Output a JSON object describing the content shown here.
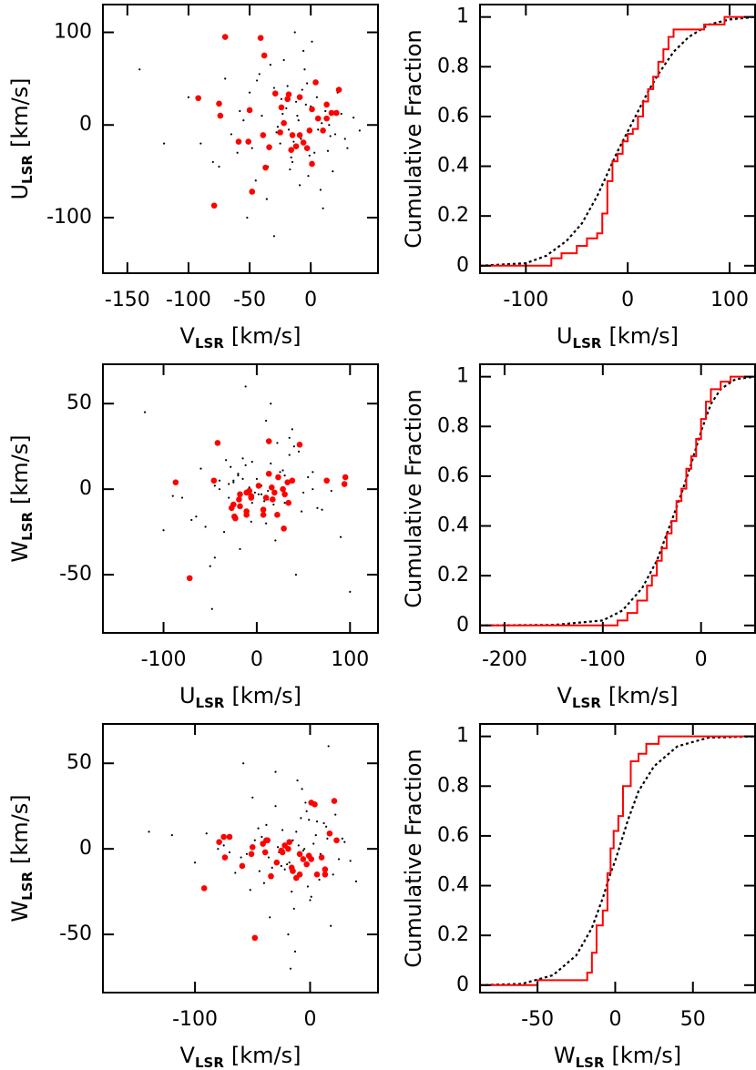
{
  "chart_data": [
    {
      "type": "scatter",
      "x_label": {
        "symbol": "V",
        "subscript": "LSR",
        "unit": "[km/s]"
      },
      "y_label": {
        "symbol": "U",
        "subscript": "LSR",
        "unit": "[km/s]"
      },
      "xlim": [
        -170,
        55
      ],
      "ylim": [
        -160,
        130
      ],
      "xticks": [
        -150,
        -100,
        -50,
        0
      ],
      "yticks": [
        -100,
        0,
        100
      ],
      "series": [
        {
          "color": "#000000",
          "x": [
            -10,
            -25,
            5,
            -40,
            -15,
            12,
            -60,
            -5,
            20,
            -30,
            -18,
            -45,
            0,
            30,
            -70,
            -8,
            -22,
            15,
            -35,
            -12,
            -55,
            8,
            -3,
            -28,
            25,
            -50,
            -16,
            -90,
            -6,
            18,
            -38,
            -20,
            3,
            -65,
            -11,
            10,
            -42,
            -2,
            -24,
            35,
            -80,
            -14,
            6,
            -33,
            -48,
            22,
            -9,
            -27,
            -58,
            1,
            -120,
            -19,
            14,
            -36,
            -4,
            40,
            -75,
            -13,
            -1,
            -44,
            28,
            -100,
            -7,
            -52,
            9,
            -30,
            -17,
            -140,
            -23,
            16
          ],
          "values": [
            5,
            -20,
            30,
            10,
            -40,
            15,
            -30,
            60,
            -10,
            40,
            -5,
            -60,
            20,
            -25,
            50,
            -15,
            70,
            0,
            -45,
            25,
            5,
            -70,
            45,
            -8,
            12,
            35,
            -35,
            -20,
            80,
            -50,
            -12,
            18,
            -30,
            -10,
            10,
            -90,
            55,
            -55,
            28,
            8,
            -40,
            -18,
            -5,
            65,
            -25,
            35,
            -65,
            -2,
            15,
            90,
            -20,
            42,
            -28,
            -80,
            22,
            -6,
            -45,
            100,
            -33,
            48,
            -15,
            30,
            38,
            -100,
            2,
            -120,
            -48,
            60,
            12,
            -12
          ]
        },
        {
          "color": "#ff0000",
          "x": [
            -70,
            -41,
            -38,
            -92,
            -75,
            -74,
            -59,
            -51,
            -50,
            -39,
            -37,
            -48,
            -79,
            -29,
            -19,
            -18,
            -9,
            -15,
            -9,
            -6,
            -12,
            -16,
            -3,
            -25,
            -22,
            1,
            4,
            1,
            6,
            10,
            13,
            17,
            21,
            23,
            13,
            -1,
            -34,
            -24
          ],
          "values": [
            95,
            94,
            75,
            29,
            23,
            10,
            -18,
            -18,
            16,
            -11,
            -46,
            -72,
            -87,
            34,
            28,
            33,
            30,
            -11,
            -11,
            -19,
            -23,
            -27,
            -25,
            -8,
            2,
            -42,
            46,
            17,
            7,
            -6,
            22,
            13,
            13,
            38,
            7,
            -6,
            -24,
            19
          ]
        }
      ]
    },
    {
      "type": "line",
      "x_label": {
        "symbol": "U",
        "subscript": "LSR",
        "unit": "[km/s]"
      },
      "y_label": "Cumulative Fraction",
      "xlim": [
        -145,
        125
      ],
      "ylim": [
        -0.03,
        1.05
      ],
      "xticks": [
        -100,
        0,
        100
      ],
      "yticks": [
        0,
        0.2,
        0.4,
        0.6,
        0.8,
        1
      ],
      "series": [
        {
          "color": "#000000",
          "linestyle": "dotted",
          "x": [
            -145,
            -100,
            -80,
            -60,
            -45,
            -30,
            -20,
            -10,
            0,
            10,
            20,
            30,
            45,
            60,
            80,
            100,
            125
          ],
          "values": [
            0,
            0.01,
            0.04,
            0.1,
            0.17,
            0.28,
            0.37,
            0.46,
            0.54,
            0.62,
            0.7,
            0.77,
            0.86,
            0.92,
            0.97,
            0.99,
            1
          ]
        },
        {
          "color": "#ff0000",
          "linestyle": "solid",
          "step": true,
          "x": [
            -145,
            -75,
            -65,
            -50,
            -40,
            -30,
            -25,
            -20,
            -15,
            -10,
            -5,
            0,
            5,
            10,
            15,
            20,
            25,
            30,
            35,
            40,
            45,
            60,
            75,
            95,
            125
          ],
          "values": [
            0,
            0.03,
            0.05,
            0.08,
            0.11,
            0.13,
            0.21,
            0.34,
            0.42,
            0.45,
            0.5,
            0.53,
            0.55,
            0.6,
            0.66,
            0.71,
            0.76,
            0.82,
            0.87,
            0.92,
            0.95,
            0.95,
            0.97,
            1,
            1
          ]
        }
      ]
    },
    {
      "type": "scatter",
      "x_label": {
        "symbol": "U",
        "subscript": "LSR",
        "unit": "[km/s]"
      },
      "y_label": {
        "symbol": "W",
        "subscript": "LSR",
        "unit": "[km/s]"
      },
      "xlim": [
        -165,
        130
      ],
      "ylim": [
        -84,
        73
      ],
      "xticks": [
        -100,
        0,
        100
      ],
      "yticks": [
        -50,
        0,
        50
      ],
      "series": [
        {
          "color": "#000000",
          "x": [
            5,
            -20,
            30,
            10,
            -40,
            15,
            -30,
            60,
            -10,
            40,
            -5,
            -60,
            20,
            -25,
            50,
            -15,
            70,
            0,
            -45,
            25,
            5,
            -70,
            45,
            -8,
            12,
            35,
            -35,
            -20,
            80,
            -50,
            -12,
            18,
            -30,
            -10,
            10,
            -90,
            55,
            -55,
            28,
            8,
            -40,
            -18,
            -5,
            65,
            -25,
            35,
            -65,
            -2,
            15,
            90,
            -20,
            42,
            -28,
            -80,
            22,
            -6,
            -45,
            100,
            -33,
            48,
            -15,
            30,
            38,
            -100,
            2,
            -120,
            -48,
            60,
            12,
            -12
          ],
          "values": [
            2,
            -10,
            8,
            -20,
            5,
            15,
            -5,
            0,
            -15,
            25,
            -8,
            12,
            -30,
            4,
            -2,
            18,
            -12,
            6,
            -40,
            10,
            -3,
            -18,
            22,
            1,
            -6,
            30,
            -25,
            9,
            -1,
            -45,
            14,
            -9,
            3,
            -14,
            40,
            -4,
            7,
            -22,
            11,
            -7,
            0,
            -35,
            16,
            -11,
            5,
            20,
            -16,
            -2,
            50,
            -28,
            8,
            -50,
            13,
            -5,
            27,
            -19,
            2,
            -60,
            17,
            -13,
            6,
            -8,
            35,
            -24,
            -3,
            45,
            -70,
            10,
            -1,
            60
          ]
        },
        {
          "color": "#ff0000",
          "x": [
            95,
            94,
            75,
            29,
            23,
            10,
            -18,
            -18,
            16,
            -11,
            -46,
            -72,
            -87,
            34,
            28,
            33,
            30,
            -11,
            -11,
            -19,
            -23,
            -27,
            -25,
            -8,
            2,
            -42,
            46,
            17,
            7,
            -6,
            22,
            13,
            13,
            38,
            7,
            -6,
            -24,
            19
          ],
          "values": [
            7,
            3,
            5,
            -23,
            7,
            -5,
            -10,
            -3,
            1,
            -2,
            5,
            -52,
            4,
            -8,
            0,
            4,
            -3,
            -13,
            -15,
            -6,
            -17,
            -11,
            -9,
            -1,
            2,
            27,
            26,
            -6,
            -15,
            -5,
            -15,
            9,
            28,
            5,
            -12,
            -4,
            -16,
            -2
          ]
        }
      ]
    },
    {
      "type": "line",
      "x_label": {
        "symbol": "V",
        "subscript": "LSR",
        "unit": "[km/s]"
      },
      "y_label": "Cumulative Fraction",
      "xlim": [
        -225,
        55
      ],
      "ylim": [
        -0.03,
        1.05
      ],
      "xticks": [
        -200,
        -100,
        0
      ],
      "yticks": [
        0,
        0.2,
        0.4,
        0.6,
        0.8,
        1
      ],
      "series": [
        {
          "color": "#000000",
          "linestyle": "dotted",
          "x": [
            -225,
            -150,
            -100,
            -80,
            -60,
            -45,
            -30,
            -20,
            -10,
            0,
            10,
            20,
            35,
            55
          ],
          "values": [
            0,
            0.002,
            0.02,
            0.06,
            0.15,
            0.26,
            0.42,
            0.53,
            0.65,
            0.78,
            0.89,
            0.95,
            0.99,
            1
          ]
        },
        {
          "color": "#ff0000",
          "linestyle": "solid",
          "step": true,
          "x": [
            -225,
            -85,
            -75,
            -65,
            -55,
            -50,
            -45,
            -40,
            -35,
            -30,
            -25,
            -20,
            -15,
            -10,
            -5,
            0,
            5,
            10,
            20,
            30,
            55
          ],
          "values": [
            0,
            0.02,
            0.05,
            0.1,
            0.16,
            0.2,
            0.26,
            0.31,
            0.37,
            0.42,
            0.5,
            0.55,
            0.63,
            0.68,
            0.75,
            0.83,
            0.9,
            0.95,
            0.98,
            1,
            1
          ]
        }
      ]
    },
    {
      "type": "scatter",
      "x_label": {
        "symbol": "V",
        "subscript": "LSR",
        "unit": "[km/s]"
      },
      "y_label": {
        "symbol": "W",
        "subscript": "LSR",
        "unit": "[km/s]"
      },
      "xlim": [
        -180,
        59
      ],
      "ylim": [
        -84,
        73
      ],
      "xticks": [
        -100,
        0
      ],
      "yticks": [
        -50,
        0,
        50
      ],
      "series": [
        {
          "color": "#000000",
          "x": [
            -10,
            -25,
            5,
            -40,
            -15,
            12,
            -60,
            -5,
            20,
            -30,
            -18,
            -45,
            0,
            30,
            -70,
            -8,
            -22,
            15,
            -35,
            -12,
            -55,
            8,
            -3,
            -28,
            25,
            -50,
            -16,
            -90,
            -6,
            18,
            -38,
            -20,
            3,
            -65,
            -11,
            10,
            -42,
            -2,
            -24,
            35,
            -80,
            -14,
            6,
            -33,
            -48,
            22,
            -9,
            -27,
            -58,
            1,
            -120,
            -19,
            14,
            -36,
            -4,
            40,
            -75,
            -13,
            -1,
            -44,
            28,
            -100,
            -7,
            -52,
            9,
            -30,
            -17,
            -140,
            -23,
            16
          ],
          "values": [
            2,
            -10,
            8,
            -20,
            5,
            15,
            -5,
            0,
            -15,
            25,
            -8,
            12,
            -30,
            4,
            -2,
            18,
            -12,
            6,
            -40,
            10,
            -3,
            -18,
            22,
            1,
            -6,
            30,
            -25,
            9,
            -1,
            -45,
            14,
            -9,
            3,
            -14,
            40,
            -4,
            7,
            -22,
            11,
            -7,
            0,
            -35,
            16,
            -11,
            5,
            20,
            -16,
            -2,
            50,
            -28,
            8,
            -50,
            13,
            -5,
            27,
            -19,
            2,
            -60,
            17,
            -13,
            6,
            -8,
            35,
            -24,
            -3,
            45,
            -70,
            10,
            -1,
            60
          ]
        },
        {
          "color": "#ff0000",
          "x": [
            -70,
            -41,
            -38,
            -92,
            -75,
            -74,
            -59,
            -51,
            -50,
            -39,
            -37,
            -48,
            -79,
            -29,
            -19,
            -18,
            -9,
            -15,
            -9,
            -6,
            -12,
            -16,
            -3,
            -25,
            -22,
            1,
            4,
            1,
            6,
            10,
            13,
            17,
            21,
            23,
            13,
            -1,
            -34,
            -24
          ],
          "values": [
            7,
            3,
            5,
            -23,
            7,
            -5,
            -10,
            -3,
            1,
            -2,
            5,
            -52,
            4,
            -8,
            0,
            4,
            -3,
            -13,
            -15,
            -6,
            -17,
            -11,
            -9,
            -1,
            2,
            27,
            26,
            -6,
            -15,
            -5,
            -15,
            9,
            28,
            5,
            -12,
            -4,
            -16,
            -2
          ]
        }
      ]
    },
    {
      "type": "line",
      "x_label": {
        "symbol": "W",
        "subscript": "LSR",
        "unit": "[km/s]"
      },
      "y_label": "Cumulative Fraction",
      "xlim": [
        -87,
        90
      ],
      "ylim": [
        -0.03,
        1.05
      ],
      "xticks": [
        -50,
        0,
        50
      ],
      "yticks": [
        0,
        0.2,
        0.4,
        0.6,
        0.8,
        1
      ],
      "series": [
        {
          "color": "#000000",
          "linestyle": "dotted",
          "x": [
            -87,
            -60,
            -40,
            -25,
            -15,
            -8,
            -3,
            0,
            3,
            8,
            15,
            25,
            40,
            60,
            90
          ],
          "values": [
            0,
            0.005,
            0.04,
            0.12,
            0.23,
            0.35,
            0.45,
            0.5,
            0.56,
            0.66,
            0.78,
            0.88,
            0.96,
            0.995,
            1
          ]
        },
        {
          "color": "#ff0000",
          "linestyle": "solid",
          "step": true,
          "x": [
            -87,
            -50,
            -18,
            -15,
            -12,
            -8,
            -5,
            -3,
            -1,
            2,
            5,
            10,
            15,
            20,
            28,
            90
          ],
          "values": [
            0,
            0.02,
            0.05,
            0.13,
            0.24,
            0.3,
            0.45,
            0.55,
            0.62,
            0.68,
            0.8,
            0.9,
            0.93,
            0.97,
            1,
            1
          ]
        }
      ]
    }
  ]
}
